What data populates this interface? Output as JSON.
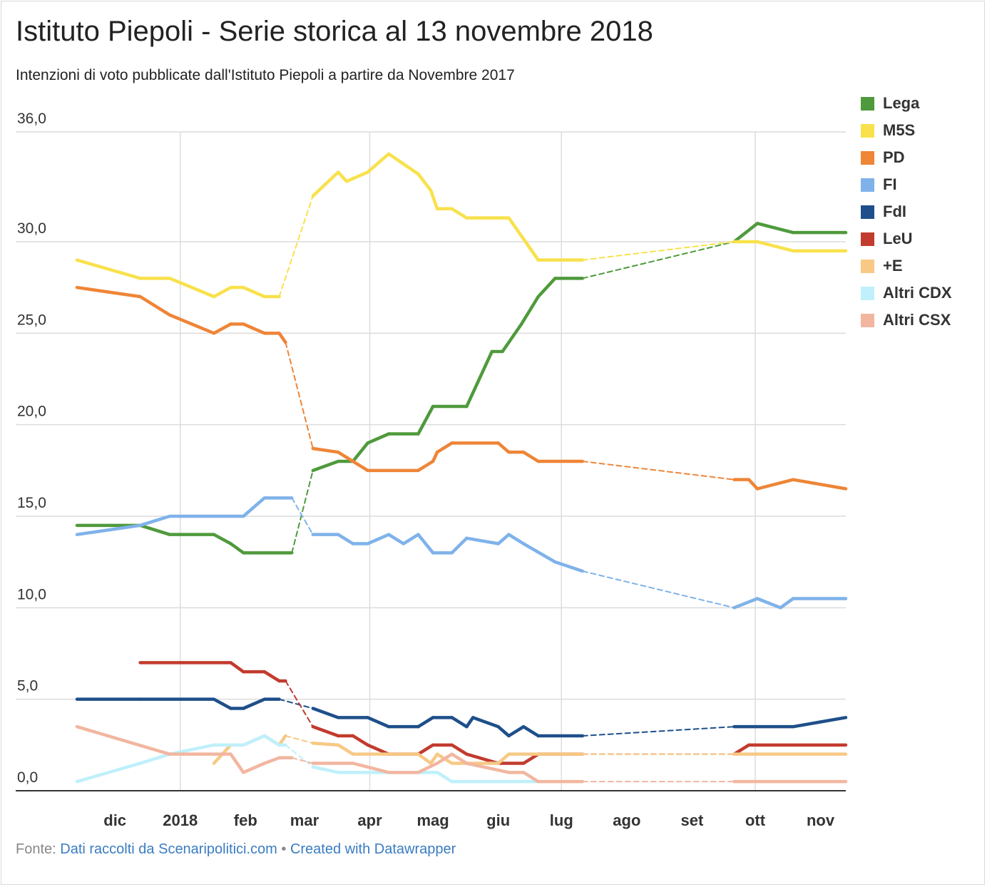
{
  "header": {
    "title": "Istituto Piepoli - Serie storica al 13 novembre 2018",
    "subtitle": "Intenzioni di voto pubblicate dall'Istituto Piepoli a partire da Novembre 2017"
  },
  "footer": {
    "prefix": "Fonte: ",
    "source_link": "Dati raccolti da Scenaripolitici.com",
    "separator": " • ",
    "credit_link": "Created with Datawrapper"
  },
  "chart_data": {
    "type": "line",
    "title": "Istituto Piepoli - Serie storica al 13 novembre 2018",
    "subtitle": "Intenzioni di voto pubblicate dall'Istituto Piepoli a partire da Novembre 2017",
    "xlabel": "",
    "ylabel": "",
    "ylim": [
      0,
      36
    ],
    "xlim": [
      "2017-11-13",
      "2018-11-13"
    ],
    "y_ticks": [
      0,
      5,
      10,
      15,
      20,
      25,
      30,
      36
    ],
    "y_tick_labels": [
      "0,0",
      "5,0",
      "10,0",
      "15,0",
      "20,0",
      "25,0",
      "30,0",
      "36,0"
    ],
    "x_ticks": [
      {
        "date": "2017-12-01",
        "label": "dic"
      },
      {
        "date": "2018-01-01",
        "label": "2018"
      },
      {
        "date": "2018-02-01",
        "label": "feb"
      },
      {
        "date": "2018-03-01",
        "label": "mar"
      },
      {
        "date": "2018-04-01",
        "label": "apr"
      },
      {
        "date": "2018-05-01",
        "label": "mag"
      },
      {
        "date": "2018-06-01",
        "label": "giu"
      },
      {
        "date": "2018-07-01",
        "label": "lug"
      },
      {
        "date": "2018-08-01",
        "label": "ago"
      },
      {
        "date": "2018-09-01",
        "label": "set"
      },
      {
        "date": "2018-10-01",
        "label": "ott"
      },
      {
        "date": "2018-11-01",
        "label": "nov"
      }
    ],
    "x_gridlines": [
      "2018-01-01",
      "2018-04-01",
      "2018-07-01",
      "2018-10-01"
    ],
    "grid": true,
    "legend_position": "right",
    "dashed_gaps": [
      [
        "2018-02-23",
        "2018-03-05"
      ],
      [
        "2018-07-11",
        "2018-09-21"
      ]
    ],
    "series": [
      {
        "name": "Lega",
        "color": "#4f9a3c",
        "points": [
          [
            "2017-11-13",
            14.5
          ],
          [
            "2017-12-13",
            14.5
          ],
          [
            "2017-12-27",
            14.0
          ],
          [
            "2018-01-17",
            14.0
          ],
          [
            "2018-01-25",
            13.5
          ],
          [
            "2018-01-31",
            13.0
          ],
          [
            "2018-02-10",
            13.0
          ],
          [
            "2018-02-23",
            13.0
          ],
          [
            "2018-03-05",
            17.5
          ],
          [
            "2018-03-17",
            18.0
          ],
          [
            "2018-03-24",
            18.0
          ],
          [
            "2018-03-31",
            19.0
          ],
          [
            "2018-04-10",
            19.5
          ],
          [
            "2018-04-24",
            19.5
          ],
          [
            "2018-05-01",
            21.0
          ],
          [
            "2018-05-17",
            21.0
          ],
          [
            "2018-05-29",
            24.0
          ],
          [
            "2018-06-03",
            24.0
          ],
          [
            "2018-06-12",
            25.5
          ],
          [
            "2018-06-20",
            27.0
          ],
          [
            "2018-06-28",
            28.0
          ],
          [
            "2018-07-11",
            28.0
          ],
          [
            "2018-09-21",
            30.0
          ],
          [
            "2018-10-02",
            31.0
          ],
          [
            "2018-10-19",
            30.5
          ],
          [
            "2018-11-13",
            30.5
          ]
        ]
      },
      {
        "name": "M5S",
        "color": "#f8e14b",
        "points": [
          [
            "2017-11-13",
            29.0
          ],
          [
            "2017-12-13",
            28.0
          ],
          [
            "2017-12-27",
            28.0
          ],
          [
            "2018-01-17",
            27.0
          ],
          [
            "2018-01-25",
            27.5
          ],
          [
            "2018-01-31",
            27.5
          ],
          [
            "2018-02-10",
            27.0
          ],
          [
            "2018-02-17",
            27.0
          ],
          [
            "2018-03-05",
            32.5
          ],
          [
            "2018-03-17",
            33.8
          ],
          [
            "2018-03-21",
            33.3
          ],
          [
            "2018-03-31",
            33.8
          ],
          [
            "2018-04-10",
            34.8
          ],
          [
            "2018-04-24",
            33.7
          ],
          [
            "2018-04-30",
            32.8
          ],
          [
            "2018-05-03",
            31.8
          ],
          [
            "2018-05-10",
            31.8
          ],
          [
            "2018-05-17",
            31.3
          ],
          [
            "2018-06-01",
            31.3
          ],
          [
            "2018-06-06",
            31.3
          ],
          [
            "2018-06-20",
            29.0
          ],
          [
            "2018-07-11",
            29.0
          ],
          [
            "2018-09-21",
            30.0
          ],
          [
            "2018-10-02",
            30.0
          ],
          [
            "2018-10-19",
            29.5
          ],
          [
            "2018-11-13",
            29.5
          ]
        ]
      },
      {
        "name": "PD",
        "color": "#ee8537",
        "points": [
          [
            "2017-11-13",
            27.5
          ],
          [
            "2017-12-13",
            27.0
          ],
          [
            "2017-12-27",
            26.0
          ],
          [
            "2018-01-17",
            25.0
          ],
          [
            "2018-01-25",
            25.5
          ],
          [
            "2018-01-31",
            25.5
          ],
          [
            "2018-02-10",
            25.0
          ],
          [
            "2018-02-17",
            25.0
          ],
          [
            "2018-02-20",
            24.5
          ],
          [
            "2018-03-05",
            18.7
          ],
          [
            "2018-03-17",
            18.5
          ],
          [
            "2018-03-31",
            17.5
          ],
          [
            "2018-04-10",
            17.5
          ],
          [
            "2018-04-24",
            17.5
          ],
          [
            "2018-05-01",
            18.0
          ],
          [
            "2018-05-03",
            18.5
          ],
          [
            "2018-05-10",
            19.0
          ],
          [
            "2018-05-17",
            19.0
          ],
          [
            "2018-06-01",
            19.0
          ],
          [
            "2018-06-06",
            18.5
          ],
          [
            "2018-06-13",
            18.5
          ],
          [
            "2018-06-20",
            18.0
          ],
          [
            "2018-07-11",
            18.0
          ],
          [
            "2018-09-21",
            17.0
          ],
          [
            "2018-09-28",
            17.0
          ],
          [
            "2018-10-02",
            16.5
          ],
          [
            "2018-10-19",
            17.0
          ],
          [
            "2018-11-13",
            16.5
          ]
        ]
      },
      {
        "name": "FI",
        "color": "#7fb2ea",
        "points": [
          [
            "2017-11-13",
            14.0
          ],
          [
            "2017-12-13",
            14.5
          ],
          [
            "2017-12-27",
            15.0
          ],
          [
            "2018-01-17",
            15.0
          ],
          [
            "2018-01-25",
            15.0
          ],
          [
            "2018-01-31",
            15.0
          ],
          [
            "2018-02-10",
            16.0
          ],
          [
            "2018-02-17",
            16.0
          ],
          [
            "2018-02-23",
            16.0
          ],
          [
            "2018-03-05",
            14.0
          ],
          [
            "2018-03-17",
            14.0
          ],
          [
            "2018-03-24",
            13.5
          ],
          [
            "2018-03-31",
            13.5
          ],
          [
            "2018-04-10",
            14.0
          ],
          [
            "2018-04-17",
            13.5
          ],
          [
            "2018-04-24",
            14.0
          ],
          [
            "2018-05-01",
            13.0
          ],
          [
            "2018-05-10",
            13.0
          ],
          [
            "2018-05-17",
            13.8
          ],
          [
            "2018-06-01",
            13.5
          ],
          [
            "2018-06-06",
            14.0
          ],
          [
            "2018-06-13",
            13.5
          ],
          [
            "2018-06-28",
            12.5
          ],
          [
            "2018-07-11",
            12.0
          ],
          [
            "2018-09-21",
            10.0
          ],
          [
            "2018-10-02",
            10.5
          ],
          [
            "2018-10-13",
            10.0
          ],
          [
            "2018-10-19",
            10.5
          ],
          [
            "2018-11-13",
            10.5
          ]
        ]
      },
      {
        "name": "FdI",
        "color": "#1e4f8a",
        "points": [
          [
            "2017-11-13",
            5.0
          ],
          [
            "2017-12-13",
            5.0
          ],
          [
            "2018-01-17",
            5.0
          ],
          [
            "2018-01-25",
            4.5
          ],
          [
            "2018-01-31",
            4.5
          ],
          [
            "2018-02-10",
            5.0
          ],
          [
            "2018-02-17",
            5.0
          ],
          [
            "2018-03-05",
            4.5
          ],
          [
            "2018-03-17",
            4.0
          ],
          [
            "2018-03-31",
            4.0
          ],
          [
            "2018-04-10",
            3.5
          ],
          [
            "2018-04-24",
            3.5
          ],
          [
            "2018-05-01",
            4.0
          ],
          [
            "2018-05-10",
            4.0
          ],
          [
            "2018-05-17",
            3.5
          ],
          [
            "2018-05-20",
            4.0
          ],
          [
            "2018-06-01",
            3.5
          ],
          [
            "2018-06-06",
            3.0
          ],
          [
            "2018-06-13",
            3.5
          ],
          [
            "2018-06-20",
            3.0
          ],
          [
            "2018-07-11",
            3.0
          ],
          [
            "2018-09-21",
            3.5
          ],
          [
            "2018-10-19",
            3.5
          ],
          [
            "2018-11-13",
            4.0
          ]
        ]
      },
      {
        "name": "LeU",
        "color": "#c23b2e",
        "points": [
          [
            "2017-12-13",
            7.0
          ],
          [
            "2018-01-25",
            7.0
          ],
          [
            "2018-01-31",
            6.5
          ],
          [
            "2018-02-10",
            6.5
          ],
          [
            "2018-02-17",
            6.0
          ],
          [
            "2018-02-20",
            6.0
          ],
          [
            "2018-03-05",
            3.5
          ],
          [
            "2018-03-17",
            3.0
          ],
          [
            "2018-03-24",
            3.0
          ],
          [
            "2018-03-31",
            2.5
          ],
          [
            "2018-04-10",
            2.0
          ],
          [
            "2018-04-24",
            2.0
          ],
          [
            "2018-05-01",
            2.5
          ],
          [
            "2018-05-10",
            2.5
          ],
          [
            "2018-05-17",
            2.0
          ],
          [
            "2018-06-01",
            1.5
          ],
          [
            "2018-06-13",
            1.5
          ],
          [
            "2018-06-20",
            2.0
          ],
          [
            "2018-07-11",
            2.0
          ],
          [
            "2018-09-21",
            2.0
          ],
          [
            "2018-09-28",
            2.5
          ],
          [
            "2018-11-13",
            2.5
          ]
        ]
      },
      {
        "name": "+E",
        "color": "#f7c985",
        "points": [
          [
            "2018-01-17",
            1.5
          ],
          [
            "2018-01-25",
            2.5
          ],
          [
            "2018-01-31",
            2.5
          ],
          [
            "2018-02-10",
            3.0
          ],
          [
            "2018-02-17",
            2.5
          ],
          [
            "2018-02-20",
            3.0
          ],
          [
            "2018-03-05",
            2.6
          ],
          [
            "2018-03-17",
            2.5
          ],
          [
            "2018-03-24",
            2.0
          ],
          [
            "2018-04-24",
            2.0
          ],
          [
            "2018-04-30",
            1.5
          ],
          [
            "2018-05-03",
            2.0
          ],
          [
            "2018-05-10",
            1.5
          ],
          [
            "2018-05-17",
            1.5
          ],
          [
            "2018-06-01",
            1.5
          ],
          [
            "2018-06-06",
            2.0
          ],
          [
            "2018-07-11",
            2.0
          ],
          [
            "2018-09-21",
            2.0
          ],
          [
            "2018-11-13",
            2.0
          ]
        ]
      },
      {
        "name": "Altri CDX",
        "color": "#bff0fb",
        "points": [
          [
            "2017-11-13",
            0.5
          ],
          [
            "2017-12-13",
            1.5
          ],
          [
            "2017-12-27",
            2.0
          ],
          [
            "2018-01-17",
            2.5
          ],
          [
            "2018-01-31",
            2.5
          ],
          [
            "2018-02-10",
            3.0
          ],
          [
            "2018-02-17",
            2.5
          ],
          [
            "2018-02-20",
            2.5
          ],
          [
            "2018-03-05",
            1.3
          ],
          [
            "2018-03-17",
            1.0
          ],
          [
            "2018-04-24",
            1.0
          ],
          [
            "2018-05-03",
            1.0
          ],
          [
            "2018-05-10",
            0.5
          ],
          [
            "2018-06-20",
            0.5
          ]
        ]
      },
      {
        "name": "Altri CSX",
        "color": "#f2b6a0",
        "points": [
          [
            "2017-11-13",
            3.5
          ],
          [
            "2017-12-27",
            2.0
          ],
          [
            "2018-01-25",
            2.0
          ],
          [
            "2018-01-31",
            1.0
          ],
          [
            "2018-02-10",
            1.5
          ],
          [
            "2018-02-17",
            1.8
          ],
          [
            "2018-02-23",
            1.8
          ],
          [
            "2018-03-05",
            1.5
          ],
          [
            "2018-03-24",
            1.5
          ],
          [
            "2018-04-10",
            1.0
          ],
          [
            "2018-04-24",
            1.0
          ],
          [
            "2018-05-03",
            1.5
          ],
          [
            "2018-05-10",
            2.0
          ],
          [
            "2018-05-17",
            1.5
          ],
          [
            "2018-06-06",
            1.0
          ],
          [
            "2018-06-13",
            1.0
          ],
          [
            "2018-06-20",
            0.5
          ],
          [
            "2018-07-11",
            0.5
          ],
          [
            "2018-09-21",
            0.5
          ],
          [
            "2018-11-13",
            0.5
          ]
        ]
      }
    ]
  }
}
